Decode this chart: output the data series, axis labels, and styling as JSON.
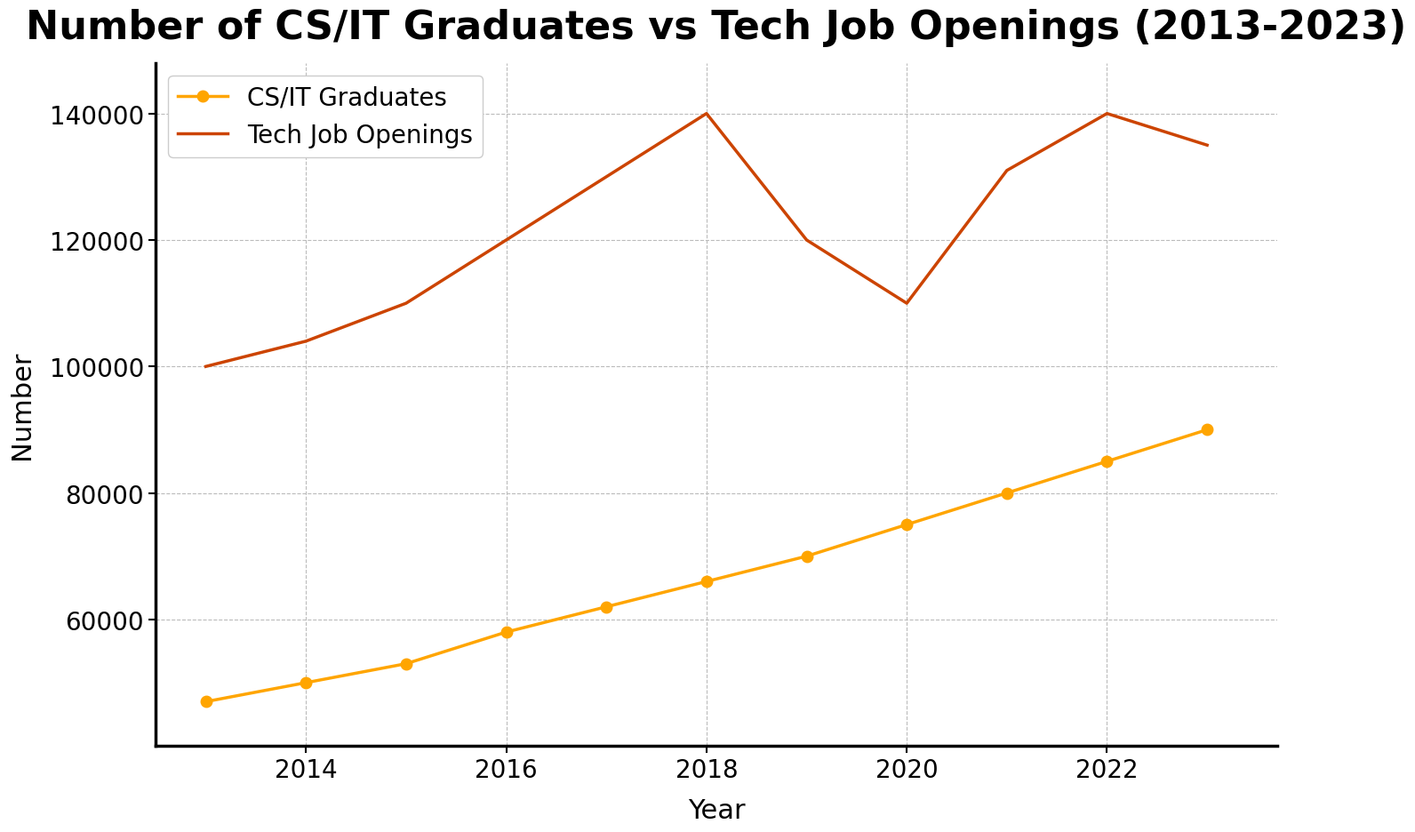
{
  "title": "Number of CS/IT Graduates vs Tech Job Openings (2013-2023)",
  "xlabel": "Year",
  "ylabel": "Number",
  "years": [
    2013,
    2014,
    2015,
    2016,
    2017,
    2018,
    2019,
    2020,
    2021,
    2022,
    2023
  ],
  "graduates": [
    47000,
    50000,
    53000,
    58000,
    62000,
    66000,
    70000,
    75000,
    80000,
    85000,
    90000
  ],
  "job_openings": [
    100000,
    104000,
    110000,
    120000,
    130000,
    140000,
    120000,
    110000,
    131000,
    140000,
    135000
  ],
  "grad_color": "#FFA500",
  "jobs_color": "#CC4400",
  "grad_label": "CS/IT Graduates",
  "jobs_label": "Tech Job Openings",
  "ylim": [
    40000,
    148000
  ],
  "yticks": [
    60000,
    80000,
    100000,
    120000,
    140000
  ],
  "xticks_display": [
    2014,
    2016,
    2018,
    2020,
    2022
  ],
  "title_fontsize": 32,
  "label_fontsize": 22,
  "tick_fontsize": 20,
  "legend_fontsize": 20,
  "background_color": "#ffffff",
  "grid_color": "#bbbbbb",
  "line_width": 2.5,
  "marker_size": 9
}
